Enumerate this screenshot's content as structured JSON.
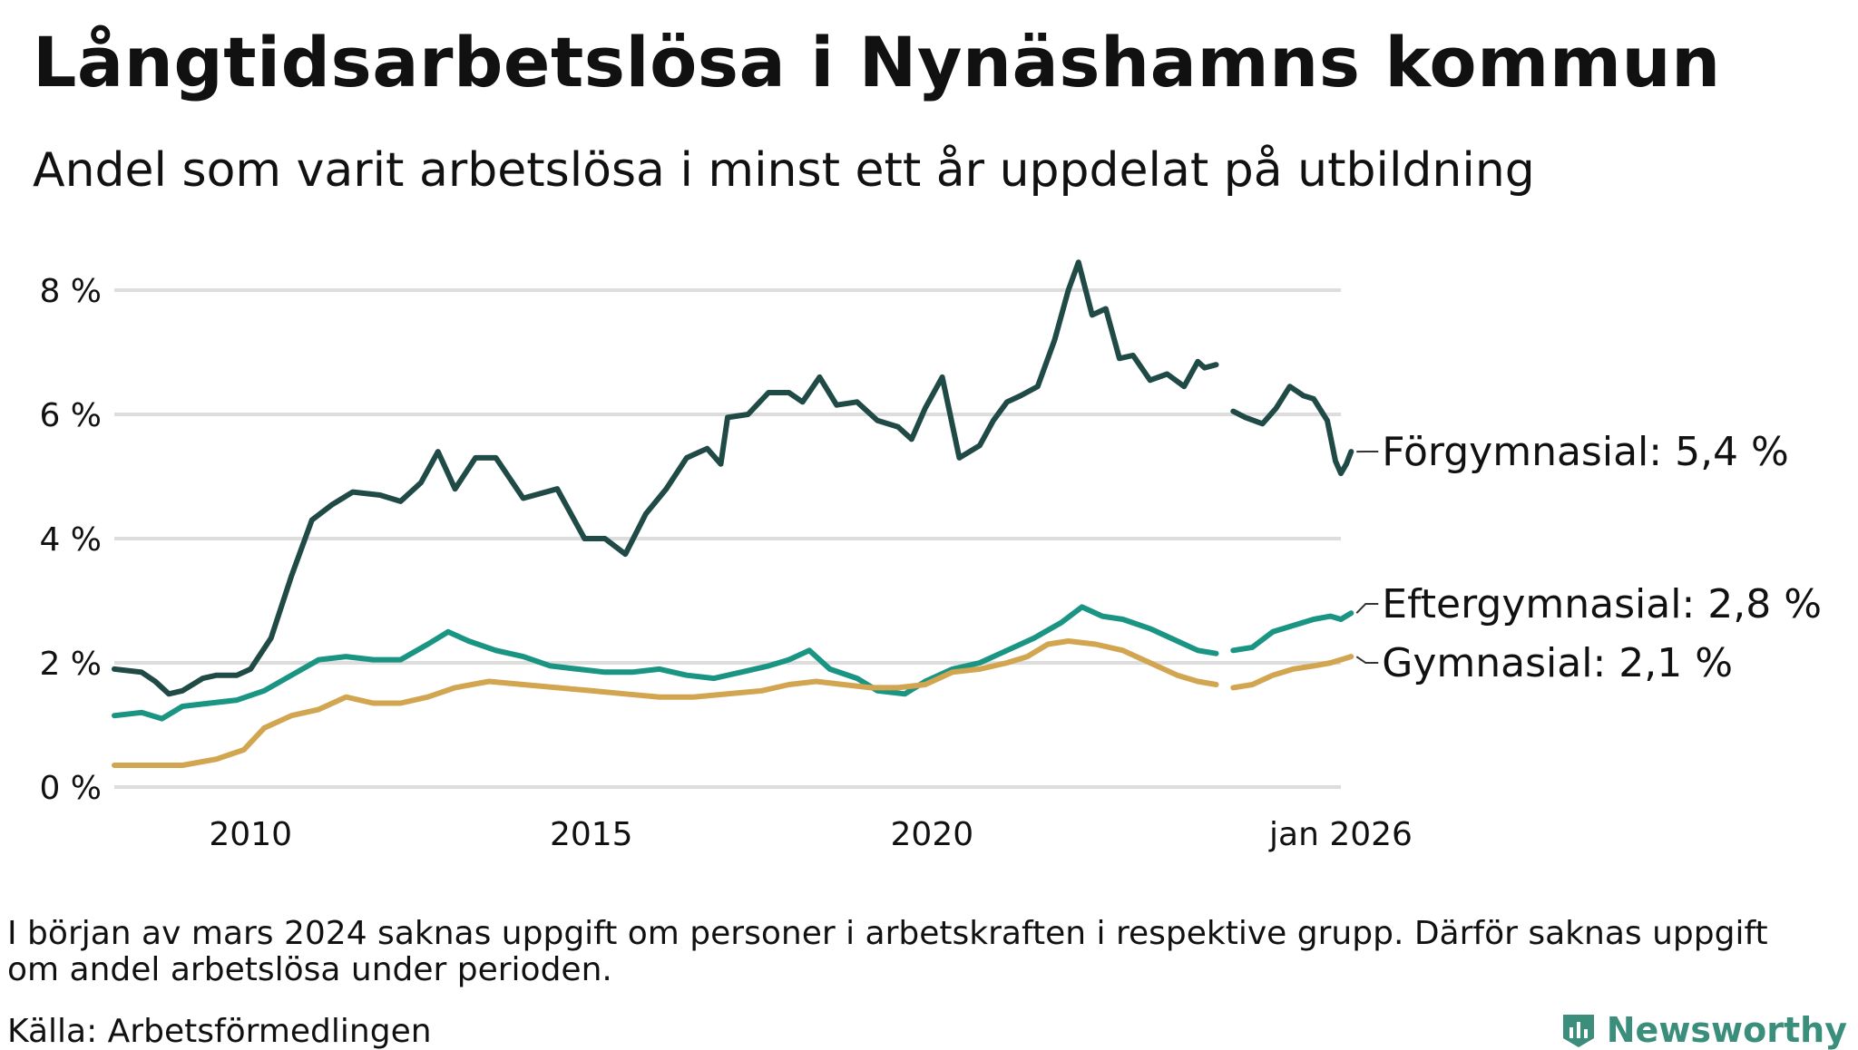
{
  "title": "Långtidsarbetslösa i Nynäshamns kommun",
  "subtitle": "Andel som varit arbetslösa i minst ett år uppdelat på utbildning",
  "note": "I början av mars 2024 saknas uppgift om personer i arbetskraften i respektive grupp. Därför saknas uppgift om andel arbetslösa under perioden.",
  "source": "Källa: Arbetsförmedlingen",
  "brand": "Newsworthy",
  "colors": {
    "forgymnasial": "#1f4a45",
    "eftergymnasial": "#1a9483",
    "gymnasial": "#d2a550",
    "grid": "#dddddd",
    "brand": "#3b8d7c"
  },
  "chart_data": {
    "type": "line",
    "x_unit": "year",
    "ylim": [
      0,
      8.6
    ],
    "xlim": [
      2008.0,
      2026.0
    ],
    "yticks": [
      0,
      2,
      4,
      6,
      8
    ],
    "ytick_labels": [
      "0 %",
      "2 %",
      "4 %",
      "6 %",
      "8 %"
    ],
    "xticks": [
      2010,
      2015,
      2020,
      2026.0
    ],
    "xtick_labels": [
      "2010",
      "2015",
      "2020",
      "jan 2026"
    ],
    "grid": true,
    "gap": [
      2024.17,
      2024.42
    ],
    "series": [
      {
        "name": "Förgymnasial",
        "label": "Förgymnasial: 5,4 %",
        "points": [
          [
            2008.0,
            1.9
          ],
          [
            2008.4,
            1.85
          ],
          [
            2008.6,
            1.7
          ],
          [
            2008.8,
            1.5
          ],
          [
            2009.0,
            1.55
          ],
          [
            2009.3,
            1.75
          ],
          [
            2009.5,
            1.8
          ],
          [
            2009.8,
            1.8
          ],
          [
            2010.0,
            1.9
          ],
          [
            2010.3,
            2.4
          ],
          [
            2010.6,
            3.4
          ],
          [
            2010.9,
            4.3
          ],
          [
            2011.2,
            4.55
          ],
          [
            2011.5,
            4.75
          ],
          [
            2011.9,
            4.7
          ],
          [
            2012.2,
            4.6
          ],
          [
            2012.5,
            4.9
          ],
          [
            2012.75,
            5.4
          ],
          [
            2013.0,
            4.8
          ],
          [
            2013.3,
            5.3
          ],
          [
            2013.6,
            5.3
          ],
          [
            2014.0,
            4.65
          ],
          [
            2014.5,
            4.8
          ],
          [
            2014.9,
            4.0
          ],
          [
            2015.2,
            4.0
          ],
          [
            2015.5,
            3.75
          ],
          [
            2015.8,
            4.4
          ],
          [
            2016.1,
            4.8
          ],
          [
            2016.4,
            5.3
          ],
          [
            2016.7,
            5.45
          ],
          [
            2016.9,
            5.2
          ],
          [
            2017.0,
            5.95
          ],
          [
            2017.3,
            6.0
          ],
          [
            2017.6,
            6.35
          ],
          [
            2017.9,
            6.35
          ],
          [
            2018.1,
            6.2
          ],
          [
            2018.35,
            6.6
          ],
          [
            2018.6,
            6.15
          ],
          [
            2018.9,
            6.2
          ],
          [
            2019.2,
            5.9
          ],
          [
            2019.5,
            5.8
          ],
          [
            2019.7,
            5.6
          ],
          [
            2019.9,
            6.1
          ],
          [
            2020.15,
            6.6
          ],
          [
            2020.4,
            5.3
          ],
          [
            2020.7,
            5.5
          ],
          [
            2020.9,
            5.9
          ],
          [
            2021.1,
            6.2
          ],
          [
            2021.3,
            6.3
          ],
          [
            2021.55,
            6.45
          ],
          [
            2021.8,
            7.2
          ],
          [
            2022.0,
            8.0
          ],
          [
            2022.15,
            8.45
          ],
          [
            2022.35,
            7.6
          ],
          [
            2022.55,
            7.7
          ],
          [
            2022.75,
            6.9
          ],
          [
            2022.95,
            6.95
          ],
          [
            2023.2,
            6.55
          ],
          [
            2023.45,
            6.65
          ],
          [
            2023.7,
            6.45
          ],
          [
            2023.9,
            6.85
          ],
          [
            2024.0,
            6.75
          ],
          [
            2024.17,
            6.8
          ],
          null,
          [
            2024.42,
            6.05
          ],
          [
            2024.6,
            5.95
          ],
          [
            2024.85,
            5.85
          ],
          [
            2025.05,
            6.1
          ],
          [
            2025.25,
            6.45
          ],
          [
            2025.45,
            6.3
          ],
          [
            2025.6,
            6.25
          ],
          [
            2025.8,
            5.9
          ],
          [
            2025.92,
            5.25
          ],
          [
            2026.0,
            5.05
          ],
          [
            2026.08,
            5.2
          ],
          [
            2026.15,
            5.4
          ]
        ]
      },
      {
        "name": "Eftergymnasial",
        "label": "Eftergymnasial: 2,8 %",
        "points": [
          [
            2008.0,
            1.15
          ],
          [
            2008.4,
            1.2
          ],
          [
            2008.7,
            1.1
          ],
          [
            2009.0,
            1.3
          ],
          [
            2009.4,
            1.35
          ],
          [
            2009.8,
            1.4
          ],
          [
            2010.2,
            1.55
          ],
          [
            2010.6,
            1.8
          ],
          [
            2011.0,
            2.05
          ],
          [
            2011.4,
            2.1
          ],
          [
            2011.8,
            2.05
          ],
          [
            2012.2,
            2.05
          ],
          [
            2012.6,
            2.3
          ],
          [
            2012.9,
            2.5
          ],
          [
            2013.2,
            2.35
          ],
          [
            2013.6,
            2.2
          ],
          [
            2014.0,
            2.1
          ],
          [
            2014.4,
            1.95
          ],
          [
            2014.8,
            1.9
          ],
          [
            2015.2,
            1.85
          ],
          [
            2015.6,
            1.85
          ],
          [
            2016.0,
            1.9
          ],
          [
            2016.4,
            1.8
          ],
          [
            2016.8,
            1.75
          ],
          [
            2017.2,
            1.85
          ],
          [
            2017.6,
            1.95
          ],
          [
            2017.9,
            2.05
          ],
          [
            2018.2,
            2.2
          ],
          [
            2018.5,
            1.9
          ],
          [
            2018.9,
            1.75
          ],
          [
            2019.2,
            1.55
          ],
          [
            2019.6,
            1.5
          ],
          [
            2019.9,
            1.7
          ],
          [
            2020.3,
            1.9
          ],
          [
            2020.7,
            2.0
          ],
          [
            2021.1,
            2.2
          ],
          [
            2021.5,
            2.4
          ],
          [
            2021.9,
            2.65
          ],
          [
            2022.2,
            2.9
          ],
          [
            2022.5,
            2.75
          ],
          [
            2022.8,
            2.7
          ],
          [
            2023.2,
            2.55
          ],
          [
            2023.6,
            2.35
          ],
          [
            2023.9,
            2.2
          ],
          [
            2024.17,
            2.15
          ],
          null,
          [
            2024.42,
            2.2
          ],
          [
            2024.7,
            2.25
          ],
          [
            2025.0,
            2.5
          ],
          [
            2025.3,
            2.6
          ],
          [
            2025.6,
            2.7
          ],
          [
            2025.85,
            2.75
          ],
          [
            2026.0,
            2.7
          ],
          [
            2026.15,
            2.8
          ]
        ]
      },
      {
        "name": "Gymnasial",
        "label": "Gymnasial: 2,1 %",
        "points": [
          [
            2008.0,
            0.35
          ],
          [
            2008.5,
            0.35
          ],
          [
            2009.0,
            0.35
          ],
          [
            2009.5,
            0.45
          ],
          [
            2009.9,
            0.6
          ],
          [
            2010.2,
            0.95
          ],
          [
            2010.6,
            1.15
          ],
          [
            2011.0,
            1.25
          ],
          [
            2011.4,
            1.45
          ],
          [
            2011.8,
            1.35
          ],
          [
            2012.2,
            1.35
          ],
          [
            2012.6,
            1.45
          ],
          [
            2013.0,
            1.6
          ],
          [
            2013.5,
            1.7
          ],
          [
            2014.0,
            1.65
          ],
          [
            2014.5,
            1.6
          ],
          [
            2015.0,
            1.55
          ],
          [
            2015.5,
            1.5
          ],
          [
            2016.0,
            1.45
          ],
          [
            2016.5,
            1.45
          ],
          [
            2017.0,
            1.5
          ],
          [
            2017.5,
            1.55
          ],
          [
            2017.9,
            1.65
          ],
          [
            2018.3,
            1.7
          ],
          [
            2018.7,
            1.65
          ],
          [
            2019.1,
            1.6
          ],
          [
            2019.5,
            1.6
          ],
          [
            2019.9,
            1.65
          ],
          [
            2020.3,
            1.85
          ],
          [
            2020.7,
            1.9
          ],
          [
            2021.1,
            2.0
          ],
          [
            2021.4,
            2.1
          ],
          [
            2021.7,
            2.3
          ],
          [
            2022.0,
            2.35
          ],
          [
            2022.4,
            2.3
          ],
          [
            2022.8,
            2.2
          ],
          [
            2023.2,
            2.0
          ],
          [
            2023.6,
            1.8
          ],
          [
            2023.9,
            1.7
          ],
          [
            2024.17,
            1.65
          ],
          null,
          [
            2024.42,
            1.6
          ],
          [
            2024.7,
            1.65
          ],
          [
            2025.0,
            1.8
          ],
          [
            2025.3,
            1.9
          ],
          [
            2025.6,
            1.95
          ],
          [
            2025.85,
            2.0
          ],
          [
            2026.0,
            2.05
          ],
          [
            2026.15,
            2.1
          ]
        ]
      }
    ]
  }
}
